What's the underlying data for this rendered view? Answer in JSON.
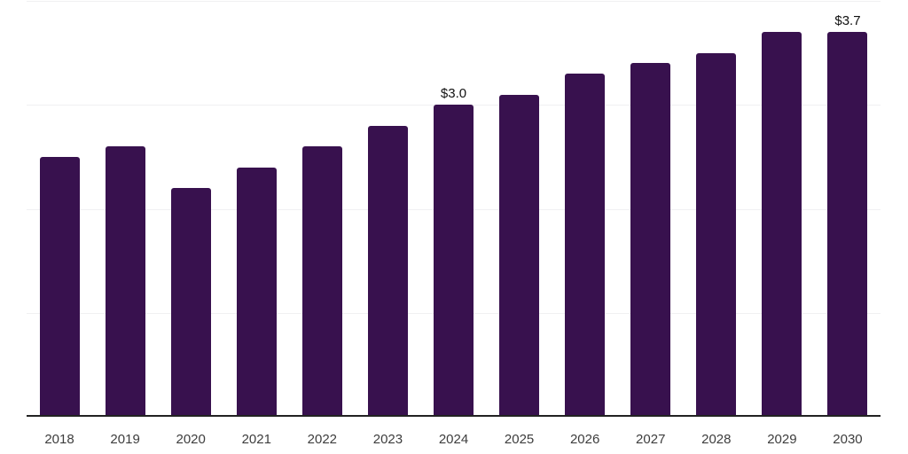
{
  "chart_data": {
    "type": "bar",
    "title": "",
    "xlabel": "",
    "ylabel": "",
    "categories": [
      "2018",
      "2019",
      "2020",
      "2021",
      "2022",
      "2023",
      "2024",
      "2025",
      "2026",
      "2027",
      "2028",
      "2029",
      "2030"
    ],
    "values": [
      2.5,
      2.6,
      2.2,
      2.4,
      2.6,
      2.8,
      3.0,
      3.1,
      3.3,
      3.4,
      3.5,
      3.7,
      3.7
    ],
    "data_labels": [
      "",
      "",
      "",
      "",
      "",
      "",
      "$3.0",
      "",
      "",
      "",
      "",
      "",
      "$3.7"
    ],
    "ylim": [
      0,
      4
    ],
    "gridline_values": [
      1,
      2,
      3,
      4
    ],
    "grid": "horizontal-only, no y-axis tick labels",
    "legend_position": "none",
    "colors": {
      "bar": "#38114e",
      "axis": "#222222",
      "gridline": "#f0f0f2",
      "tick_label": "#3d3d3d",
      "data_label": "#111111",
      "background": "#ffffff"
    }
  }
}
